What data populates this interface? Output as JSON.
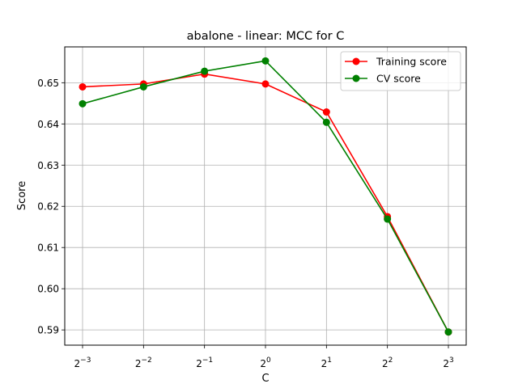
{
  "chart_data": {
    "type": "line",
    "title": "abalone - linear: MCC for C",
    "xlabel": "C",
    "ylabel": "Score",
    "x_scale": "log2",
    "x_ticks": [
      {
        "base": "2",
        "exp": "−3",
        "value": 0.125
      },
      {
        "base": "2",
        "exp": "−2",
        "value": 0.25
      },
      {
        "base": "2",
        "exp": "−1",
        "value": 0.5
      },
      {
        "base": "2",
        "exp": "0",
        "value": 1
      },
      {
        "base": "2",
        "exp": "1",
        "value": 2
      },
      {
        "base": "2",
        "exp": "2",
        "value": 4
      },
      {
        "base": "2",
        "exp": "3",
        "value": 8
      }
    ],
    "x": [
      0.125,
      0.25,
      0.5,
      1,
      2,
      4,
      8
    ],
    "y_ticks": [
      "0.59",
      "0.60",
      "0.61",
      "0.62",
      "0.63",
      "0.64",
      "0.65"
    ],
    "ylim": [
      0.5863,
      0.6587
    ],
    "grid": true,
    "legend_position": "top-right",
    "series": [
      {
        "name": "Training score",
        "color": "#ff0000",
        "values": [
          0.649,
          0.6497,
          0.6521,
          0.6497,
          0.6429,
          0.6175,
          0.5895
        ]
      },
      {
        "name": "CV score",
        "color": "#008000",
        "values": [
          0.6449,
          0.649,
          0.6528,
          0.6553,
          0.6404,
          0.6169,
          0.5895
        ]
      }
    ]
  }
}
